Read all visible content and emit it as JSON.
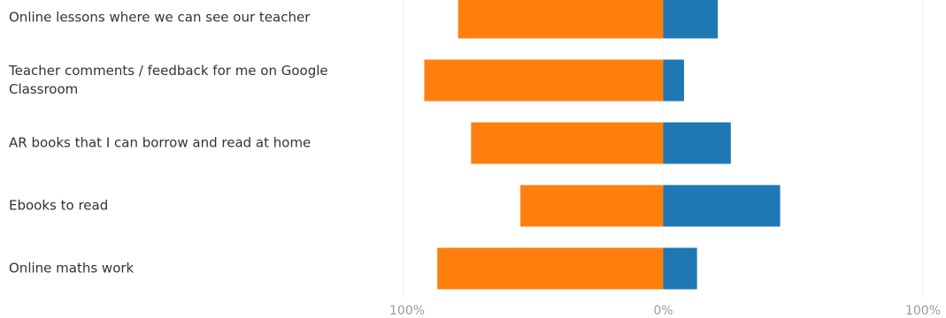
{
  "chart_data": {
    "type": "bar",
    "orientation": "horizontal",
    "stacking": "diverging",
    "categories": [
      "Online lessons where we can see our teacher",
      "Teacher comments / feedback for me on Google Classroom",
      "AR books that I can borrow and read at home",
      "Ebooks to read",
      "Online maths work"
    ],
    "category_lines": [
      [
        "Online lessons where we can see our teacher"
      ],
      [
        "Teacher comments / feedback for me on Google",
        "Classroom"
      ],
      [
        "AR books that I can borrow and read at home"
      ],
      [
        "Ebooks to read"
      ],
      [
        "Online maths work"
      ]
    ],
    "series": [
      {
        "color": "#ff7f0e",
        "values": [
          -79,
          -92,
          -74,
          -55,
          -87
        ]
      },
      {
        "color": "#1f77b4",
        "values": [
          21,
          8,
          26,
          45,
          13
        ]
      }
    ],
    "xlim": [
      -100,
      100
    ],
    "x_ticks": [
      {
        "value": -100,
        "label": "100%"
      },
      {
        "value": 0,
        "label": "0%"
      },
      {
        "value": 100,
        "label": "100%"
      }
    ],
    "grid": true,
    "title": "",
    "xlabel": "",
    "ylabel": ""
  }
}
